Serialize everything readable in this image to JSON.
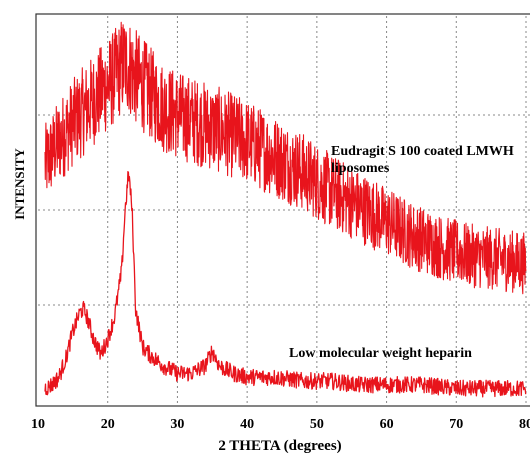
{
  "chart_data": {
    "type": "line",
    "title": "",
    "xlabel": "2 THETA (degrees)",
    "ylabel": "INTENSITY",
    "xlim": [
      10,
      80
    ],
    "ylim": [
      0,
      100
    ],
    "x_ticks": [
      "10",
      "20",
      "30",
      "40",
      "50",
      "60",
      "70",
      "80"
    ],
    "grid": true,
    "line_color": "#e8141c",
    "series": [
      {
        "name": "Eudragit S 100 coated LMWH liposomes",
        "x": [
          11,
          13,
          15,
          17,
          19,
          21,
          22,
          22.5,
          23,
          24,
          26,
          28,
          30,
          33,
          36,
          40,
          44,
          48,
          52,
          56,
          60,
          64,
          68,
          72,
          76,
          80
        ],
        "y": [
          62,
          68,
          73,
          77,
          81,
          85,
          88,
          88.5,
          88,
          85,
          81,
          77,
          75,
          73,
          71,
          68,
          64,
          60,
          55,
          51,
          47,
          43,
          40,
          38,
          37,
          36
        ]
      },
      {
        "name": "Low molecular weight heparin",
        "x": [
          11,
          12,
          13,
          14,
          15,
          16,
          16.5,
          17,
          18,
          19,
          20,
          21,
          22,
          22.5,
          23,
          23.5,
          24,
          25,
          26,
          28,
          30,
          32,
          34,
          35,
          36,
          38,
          40,
          44,
          48,
          52,
          56,
          60,
          65,
          70,
          75,
          80
        ],
        "y": [
          3,
          4,
          6,
          11,
          18,
          23,
          24,
          22,
          16,
          12,
          16,
          22,
          34,
          50,
          60,
          50,
          24,
          14,
          12,
          9,
          7,
          7,
          9,
          13,
          9,
          7,
          6,
          6,
          5,
          5,
          4,
          4,
          4,
          3,
          3,
          3
        ]
      }
    ],
    "annotations": [
      "Eudragit S 100 coated LMWH",
      "liposomes",
      "Low molecular weight heparin"
    ]
  }
}
